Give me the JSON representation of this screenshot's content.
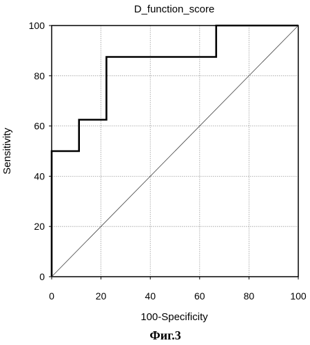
{
  "chart_data": {
    "type": "line",
    "title": "D_function_score",
    "xlabel": "100-Specificity",
    "ylabel": "Sensitivity",
    "xlim": [
      0,
      100
    ],
    "ylim": [
      0,
      100
    ],
    "xticks": [
      0,
      20,
      40,
      60,
      80,
      100
    ],
    "yticks": [
      0,
      20,
      40,
      60,
      80,
      100
    ],
    "grid": true,
    "series": [
      {
        "style": "step",
        "x": [
          0,
          0,
          11.1,
          11.1,
          22.2,
          22.2,
          66.7,
          66.7,
          100
        ],
        "y": [
          0,
          50,
          50,
          62.5,
          62.5,
          87.5,
          87.5,
          100,
          100
        ]
      },
      {
        "style": "diagonal-reference",
        "x": [
          0,
          100
        ],
        "y": [
          0,
          100
        ]
      }
    ]
  },
  "caption": "Фиг.3",
  "colors": {
    "curve": "#000000",
    "diagonal": "#444444",
    "grid": "#9a9a9a",
    "frame": "#000000"
  }
}
